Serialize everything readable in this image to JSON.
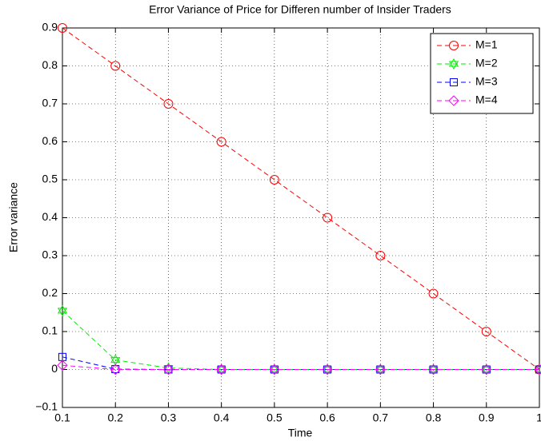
{
  "chart_data": {
    "type": "line",
    "title": "Error Variance of Price for Differen number of Insider Traders",
    "x_label": "Time",
    "y_label": "Error variance",
    "x": [
      0.1,
      0.2,
      0.3,
      0.4,
      0.5,
      0.6,
      0.7,
      0.8,
      0.9,
      1
    ],
    "series": [
      {
        "name": "M=1",
        "color": "#ff0000",
        "marker": "circle",
        "values": [
          0.9,
          0.8,
          0.7,
          0.6,
          0.5,
          0.4,
          0.3,
          0.2,
          0.1,
          0
        ]
      },
      {
        "name": "M=2",
        "color": "#00ee00",
        "marker": "hexagram",
        "values": [
          0.155,
          0.025,
          0.004,
          0,
          0,
          0,
          0,
          0,
          0,
          0
        ]
      },
      {
        "name": "M=3",
        "color": "#0000ff",
        "marker": "square",
        "values": [
          0.033,
          0.001,
          0,
          0,
          0,
          0,
          0,
          0,
          0,
          0
        ]
      },
      {
        "name": "M=4",
        "color": "#ff00ff",
        "marker": "diamond",
        "values": [
          0.011,
          0,
          0,
          0,
          0,
          0,
          0,
          0,
          0,
          0
        ]
      }
    ],
    "xlim": [
      0.1,
      1
    ],
    "xticks": [
      0.1,
      0.2,
      0.3,
      0.4,
      0.5,
      0.6,
      0.7,
      0.8,
      0.9,
      1
    ],
    "ylim": [
      -0.1,
      0.9
    ],
    "yticks": [
      {
        "value": -0.1,
        "label": "−0.1"
      },
      0,
      0.1,
      0.2,
      0.3,
      0.4,
      0.5,
      0.6,
      0.7,
      0.8,
      0.9
    ],
    "grid": true,
    "legend": "top-right"
  }
}
